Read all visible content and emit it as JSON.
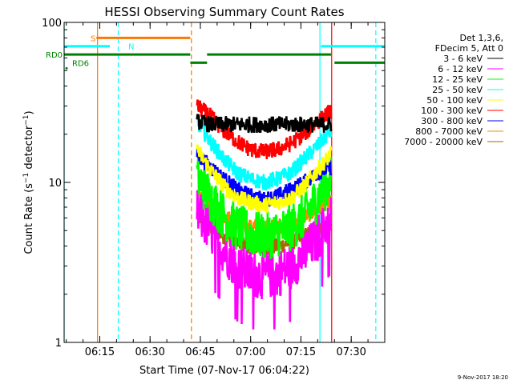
{
  "chart_data": {
    "type": "line",
    "title": "HESSI Observing Summary Count Rates",
    "xlabel": "Start Time (07-Nov-17 06:04:22)",
    "ylabel": "Count Rate (s⁻¹ detector⁻¹)",
    "ylabel_parts": {
      "main": "Count Rate (s",
      "sup1": "−1",
      "mid": " detector",
      "sup2": "−1",
      "end": ")"
    },
    "yscale": "log",
    "ylim": [
      1,
      100
    ],
    "xlim": [
      "06:04:22",
      "07:40:00"
    ],
    "x_ticks": [
      "06:15",
      "06:30",
      "06:45",
      "07:00",
      "07:15",
      "07:30"
    ],
    "y_ticks": [
      "1",
      "10",
      "100"
    ],
    "footer_date": "9-Nov-2017 18:20",
    "legend_header": [
      "Det 1,3,6,",
      "FDecim 5, Att 0"
    ],
    "colors": {
      "3-6": "#000000",
      "6-12": "#ff00ff",
      "12-25": "#00ff00",
      "25-50": "#00ffff",
      "50-100": "#ffff00",
      "100-300": "#ff0000",
      "300-800": "#0000ff",
      "800-7000": "#ff8800",
      "7000-20000": "#aa6600",
      "rd": "#008000",
      "s": "#ff7700",
      "n": "#00ffff"
    },
    "series": [
      {
        "name": "3 - 6 keV",
        "color": "#000000",
        "x": [
          "06:44",
          "06:48",
          "06:52",
          "06:56",
          "07:00",
          "07:04",
          "07:08",
          "07:12",
          "07:16",
          "07:20",
          "07:24"
        ],
        "y": [
          24,
          23,
          23,
          23,
          23,
          23,
          23,
          23,
          23,
          23,
          23
        ]
      },
      {
        "name": "6 - 12 keV",
        "color": "#ff00ff",
        "x": [
          "06:44",
          "06:48",
          "06:52",
          "06:56",
          "07:00",
          "07:04",
          "07:08",
          "07:12",
          "07:16",
          "07:20",
          "07:24"
        ],
        "y": [
          6.5,
          5.0,
          3.8,
          3.0,
          2.7,
          2.6,
          2.7,
          3.0,
          3.6,
          4.5,
          6.0
        ]
      },
      {
        "name": "12 - 25 keV",
        "color": "#00ff00",
        "x": [
          "06:44",
          "06:48",
          "06:52",
          "06:56",
          "07:00",
          "07:04",
          "07:08",
          "07:12",
          "07:16",
          "07:20",
          "07:24"
        ],
        "y": [
          11,
          8,
          6.2,
          5.2,
          4.8,
          4.6,
          4.8,
          5.2,
          6.2,
          8,
          10.5
        ]
      },
      {
        "name": "25 - 50 keV",
        "color": "#00ffff",
        "x": [
          "06:44",
          "06:48",
          "06:52",
          "06:56",
          "07:00",
          "07:04",
          "07:08",
          "07:12",
          "07:16",
          "07:20",
          "07:24"
        ],
        "y": [
          24,
          18,
          14,
          11.5,
          10.5,
          10,
          10.5,
          11.5,
          14,
          17,
          21
        ]
      },
      {
        "name": "50 - 100 keV",
        "color": "#ffff00",
        "x": [
          "06:44",
          "06:48",
          "06:52",
          "06:56",
          "07:00",
          "07:04",
          "07:08",
          "07:12",
          "07:16",
          "07:20",
          "07:24"
        ],
        "y": [
          16,
          12,
          9.5,
          8,
          7.5,
          7.2,
          7.5,
          8,
          9.5,
          12,
          15
        ]
      },
      {
        "name": "100 - 300 keV",
        "color": "#ff0000",
        "x": [
          "06:44",
          "06:48",
          "06:52",
          "06:56",
          "07:00",
          "07:04",
          "07:08",
          "07:12",
          "07:16",
          "07:20",
          "07:24"
        ],
        "y": [
          30,
          26,
          21,
          18,
          16,
          15.5,
          16,
          17.5,
          20,
          24,
          28
        ]
      },
      {
        "name": "300 - 800 keV",
        "color": "#0000ff",
        "x": [
          "06:44",
          "06:48",
          "06:52",
          "06:56",
          "07:00",
          "07:04",
          "07:08",
          "07:12",
          "07:16",
          "07:20",
          "07:24"
        ],
        "y": [
          15,
          12.5,
          10.5,
          9,
          8.2,
          7.8,
          8.2,
          9,
          10,
          11.5,
          12.5
        ]
      },
      {
        "name": "800 - 7000 keV",
        "color": "#ff8800",
        "x": [
          "06:44",
          "06:48",
          "06:52",
          "06:56",
          "07:00",
          "07:04",
          "07:08",
          "07:12",
          "07:16",
          "07:20",
          "07:24"
        ],
        "y": [
          8.5,
          7.2,
          6.2,
          5.6,
          5.3,
          5.2,
          5.3,
          5.6,
          6.1,
          6.8,
          7.6
        ]
      },
      {
        "name": "7000 - 20000 keV",
        "color": "#aa6600",
        "x": [
          "06:44",
          "06:48",
          "06:52",
          "06:56",
          "07:00",
          "07:04",
          "07:08",
          "07:12",
          "07:16",
          "07:20",
          "07:24"
        ],
        "y": [
          6.2,
          5.3,
          4.6,
          4.2,
          4.0,
          3.9,
          4.0,
          4.2,
          4.6,
          5.1,
          5.6
        ]
      }
    ],
    "flags": [
      {
        "label": "S",
        "color": "#ff7700",
        "y": 80,
        "segments": [
          [
            "06:14",
            "06:42"
          ]
        ]
      },
      {
        "label": "N",
        "color": "#00ffff",
        "y": 71,
        "segments": [
          [
            "06:04",
            "06:18"
          ],
          [
            "07:21",
            "07:40"
          ]
        ]
      },
      {
        "label": "RD0",
        "color": "#008000",
        "y": 63,
        "segments": [
          [
            "06:04",
            "06:42"
          ],
          [
            "06:47",
            "07:24"
          ]
        ]
      },
      {
        "label": "RD6",
        "color": "#008000",
        "y": 56,
        "segments": [
          [
            "06:42",
            "06:47"
          ],
          [
            "07:25",
            "07:40"
          ]
        ]
      }
    ],
    "vlines": [
      {
        "t": "06:04:22",
        "color": "#00ffff",
        "style": "solid"
      },
      {
        "t": "06:14:20",
        "color": "#ff7700",
        "style": "solid"
      },
      {
        "t": "06:20:30",
        "color": "#00ffff",
        "style": "dashed"
      },
      {
        "t": "06:42:20",
        "color": "#ff7700",
        "style": "dashed"
      },
      {
        "t": "07:20:40",
        "color": "#00ffff",
        "style": "solid"
      },
      {
        "t": "07:24:10",
        "color": "#ff0000",
        "style": "solid"
      },
      {
        "t": "07:37:20",
        "color": "#00ffff",
        "style": "dashed"
      }
    ],
    "grid": false,
    "legend_position": "right"
  }
}
